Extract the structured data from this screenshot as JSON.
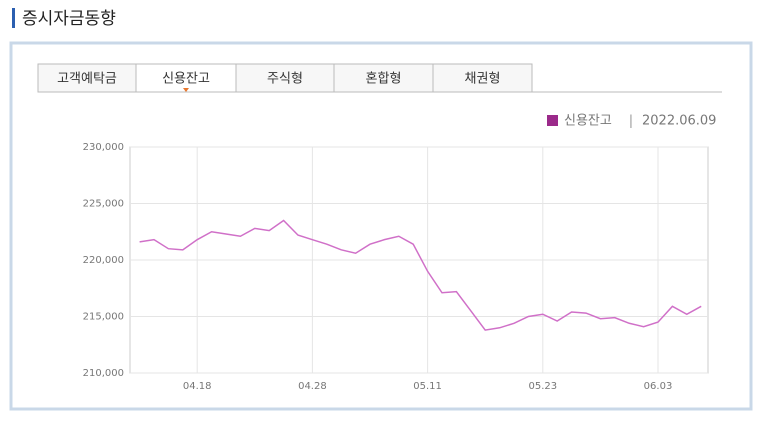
{
  "header": {
    "title": "증시자금동향"
  },
  "tabs": {
    "items": [
      "고객예탁금",
      "신용잔고",
      "주식형",
      "혼합형",
      "채권형"
    ],
    "active": 1
  },
  "chart_data": {
    "type": "line",
    "legend_date": "2022.06.09",
    "legend_separator": "|",
    "legend_color": "#9b2a8a",
    "categories": [
      null,
      null,
      null,
      null,
      "04.18",
      null,
      null,
      null,
      null,
      null,
      null,
      null,
      "04.28",
      null,
      null,
      null,
      null,
      null,
      null,
      null,
      "05.11",
      null,
      null,
      null,
      null,
      null,
      null,
      null,
      "05.23",
      null,
      null,
      null,
      null,
      null,
      null,
      null,
      "06.03",
      null,
      null,
      null
    ],
    "series": [
      {
        "name": "신용잔고",
        "color": "#d070c8",
        "values": [
          221600,
          221800,
          221000,
          220900,
          221800,
          222500,
          222300,
          222100,
          222800,
          222600,
          223500,
          222200,
          221800,
          221400,
          220900,
          220600,
          221400,
          221800,
          222100,
          221400,
          219000,
          217100,
          217200,
          215500,
          213800,
          214000,
          214400,
          215000,
          215200,
          214600,
          215400,
          215300,
          214800,
          214900,
          214400,
          214100,
          214500,
          215900,
          215200,
          215900
        ]
      }
    ],
    "ylim": [
      210000,
      230000
    ],
    "yticks": [
      {
        "value": 210000,
        "label": "210,000"
      },
      {
        "value": 215000,
        "label": "215,000"
      },
      {
        "value": 220000,
        "label": "220,000"
      },
      {
        "value": 225000,
        "label": "225,000"
      },
      {
        "value": 230000,
        "label": "230,000"
      }
    ],
    "grid": true
  }
}
